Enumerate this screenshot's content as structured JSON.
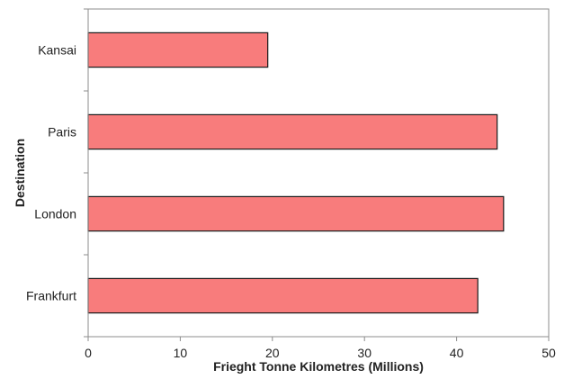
{
  "chart_data": {
    "type": "bar",
    "orientation": "horizontal",
    "title": "",
    "xlabel": "Frieght Tonne Kilometres (Millions)",
    "ylabel": "Destination",
    "categories": [
      "Kansai",
      "Paris",
      "London",
      "Frankfurt"
    ],
    "values": [
      19.5,
      44.4,
      45.1,
      42.3
    ],
    "xlim": [
      0,
      50
    ],
    "xticks": [
      0,
      10,
      20,
      30,
      40,
      50
    ],
    "grid": false,
    "legend": "none",
    "colors": {
      "bar_fill": "#f87c7c",
      "bar_stroke": "#1a1a1a",
      "axis": "#8c8c8c",
      "plot_border": "#8c8c8c"
    }
  }
}
